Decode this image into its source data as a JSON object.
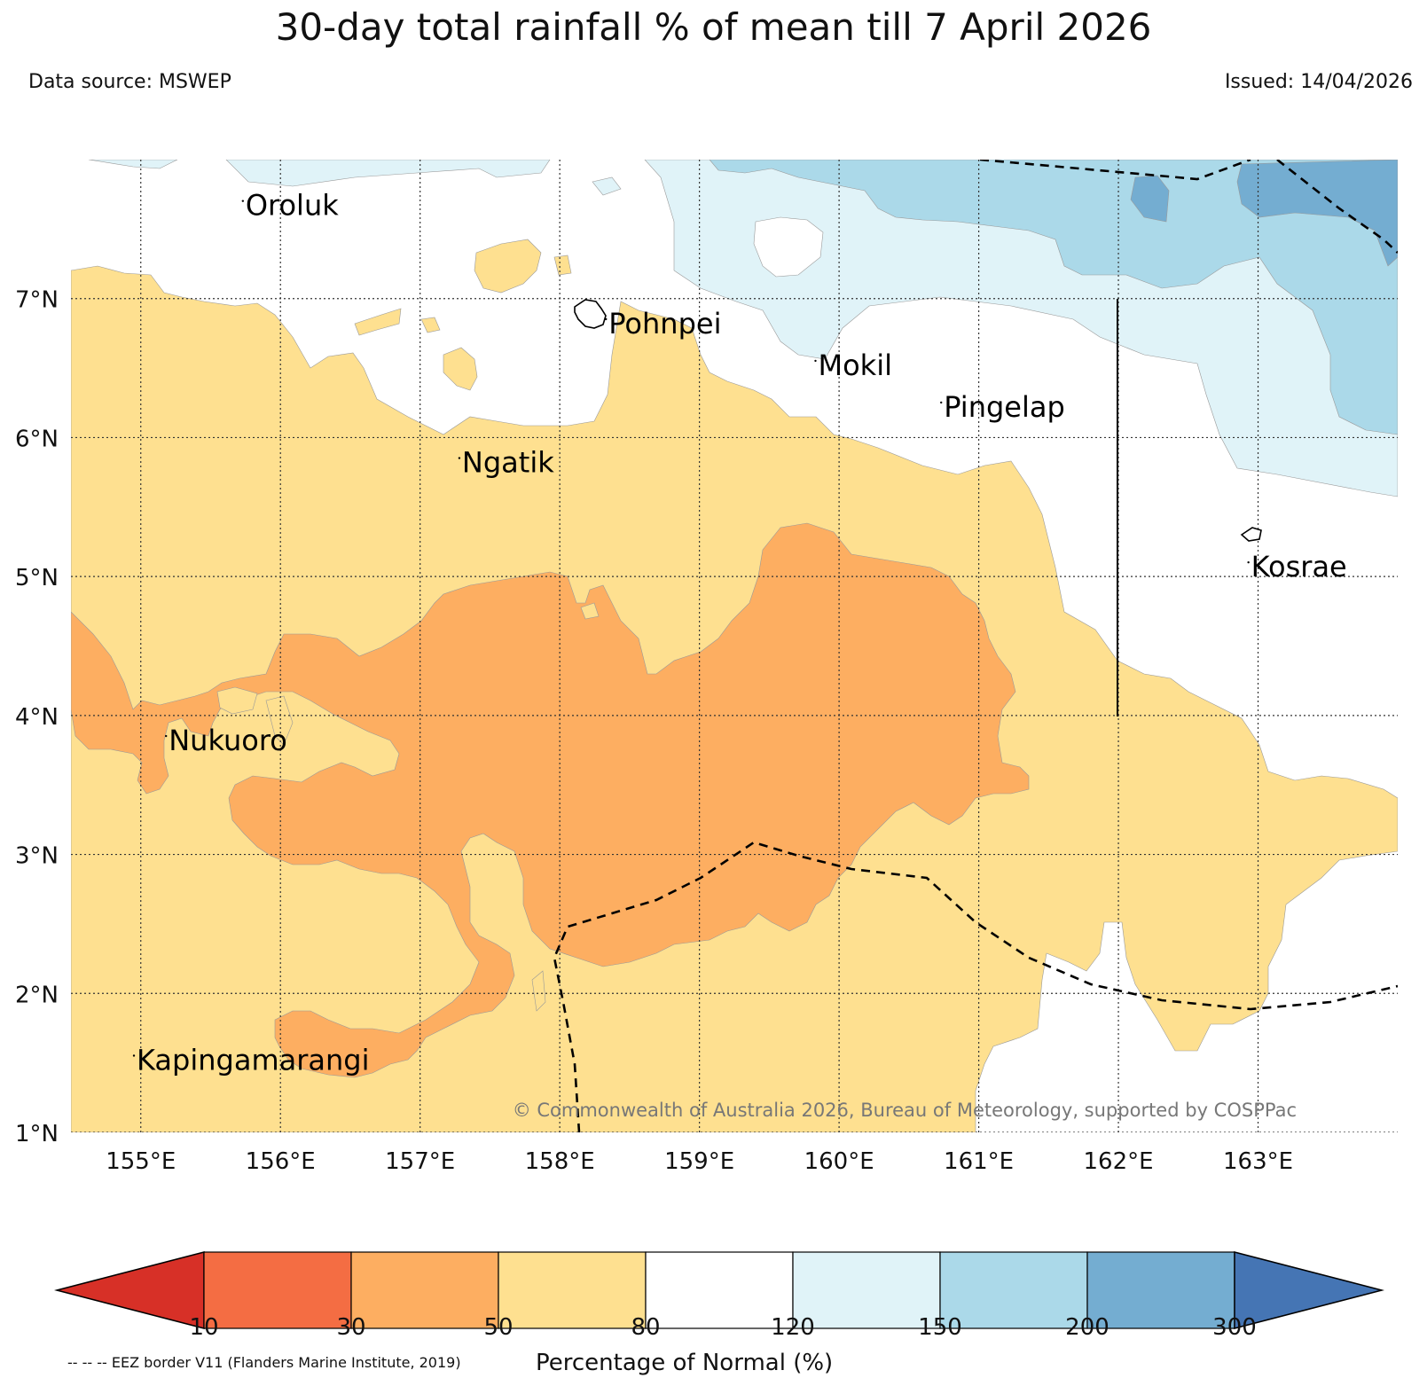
{
  "title": "30-day total rainfall % of mean till 7 April 2026",
  "data_source": "Data source: MSWEP",
  "issued": "Issued: 14/04/2026",
  "map": {
    "lon_range": [
      154.5,
      164.0
    ],
    "lat_range": [
      1.0,
      8.0
    ],
    "lon_ticks": [
      "155°E",
      "156°E",
      "157°E",
      "158°E",
      "159°E",
      "160°E",
      "161°E",
      "162°E",
      "163°E"
    ],
    "lat_ticks": [
      "1°N",
      "2°N",
      "3°N",
      "4°N",
      "5°N",
      "6°N",
      "7°N"
    ],
    "places": [
      {
        "name": "Oroluk",
        "lon": 155.75,
        "lat": 7.6
      },
      {
        "name": "Pohnpei",
        "lon": 158.35,
        "lat": 6.75
      },
      {
        "name": "Mokil",
        "lon": 159.85,
        "lat": 6.45
      },
      {
        "name": "Pingelap",
        "lon": 160.75,
        "lat": 6.15
      },
      {
        "name": "Ngatik",
        "lon": 157.3,
        "lat": 5.75
      },
      {
        "name": "Kosrae",
        "lon": 162.95,
        "lat": 5.0
      },
      {
        "name": "Nukuoro",
        "lon": 155.2,
        "lat": 3.75
      },
      {
        "name": "Kapingamarangi",
        "lon": 154.97,
        "lat": 1.45
      }
    ],
    "copyright": "© Commonwealth of Australia 2026, Bureau of Meteorology, supported by COSPPac"
  },
  "legend": {
    "title": "Percentage of Normal (%)",
    "labels": [
      "10",
      "30",
      "50",
      "80",
      "120",
      "150",
      "200",
      "300"
    ],
    "colors": [
      "#d73027",
      "#f46d43",
      "#fdae61",
      "#fee090",
      "#ffffff",
      "#e0f3f8",
      "#abd9e9",
      "#74add1",
      "#4575b4"
    ],
    "eez_note": "-- -- -- EEZ border V11 (Flanders Marine Institute, 2019)"
  }
}
